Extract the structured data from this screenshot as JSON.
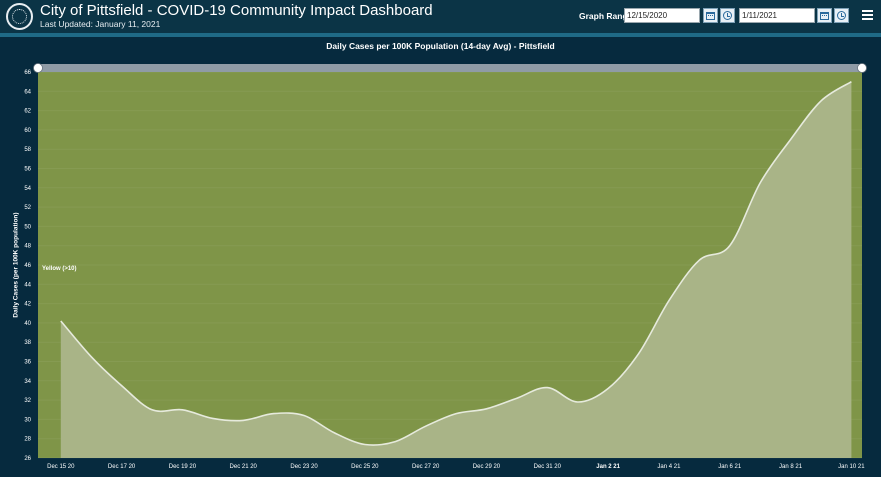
{
  "header": {
    "title": "City of Pittsfield - COVID-19 Community Impact Dashboard",
    "last_updated": "Last Updated: January 11, 2021",
    "graph_range_label": "Graph Range",
    "start_date": "12/15/2020",
    "end_date": "1/11/2021",
    "icons": [
      "city-seal-icon",
      "calendar-icon",
      "clock-icon",
      "calendar-icon",
      "clock-icon",
      "hamburger-menu-icon"
    ]
  },
  "colors": {
    "background": "#062a3e",
    "header": "#0b3446",
    "band_fill": "#7f9548",
    "area_fill": "#a9b487",
    "line": "#e6eadc",
    "slider": "#8f9ba6"
  },
  "chart_data": {
    "type": "area",
    "title": "Daily Cases per 100K Population (14-day Avg) - Pittsfield",
    "ylabel": "Daily Cases (per 100K population)",
    "xlabel": "",
    "ylim": [
      26,
      66
    ],
    "yticks": [
      26,
      28,
      30,
      32,
      34,
      36,
      38,
      40,
      42,
      44,
      46,
      48,
      50,
      52,
      54,
      56,
      58,
      60,
      62,
      64,
      66
    ],
    "xticks": [
      {
        "x": "2020-12-15",
        "label": "Dec 15 20",
        "bold": false
      },
      {
        "x": "2020-12-17",
        "label": "Dec 17 20",
        "bold": false
      },
      {
        "x": "2020-12-19",
        "label": "Dec 19 20",
        "bold": false
      },
      {
        "x": "2020-12-21",
        "label": "Dec 21 20",
        "bold": false
      },
      {
        "x": "2020-12-23",
        "label": "Dec 23 20",
        "bold": false
      },
      {
        "x": "2020-12-25",
        "label": "Dec 25 20",
        "bold": false
      },
      {
        "x": "2020-12-27",
        "label": "Dec 27 20",
        "bold": false
      },
      {
        "x": "2020-12-29",
        "label": "Dec 29 20",
        "bold": false
      },
      {
        "x": "2020-12-31",
        "label": "Dec 31 20",
        "bold": false
      },
      {
        "x": "2021-01-02",
        "label": "Jan 2 21",
        "bold": true
      },
      {
        "x": "2021-01-04",
        "label": "Jan 4 21",
        "bold": false
      },
      {
        "x": "2021-01-06",
        "label": "Jan 6 21",
        "bold": false
      },
      {
        "x": "2021-01-08",
        "label": "Jan 8 21",
        "bold": false
      },
      {
        "x": "2021-01-10",
        "label": "Jan 10 21",
        "bold": false
      }
    ],
    "band": {
      "label": "Yellow (>10)",
      "from": 26,
      "to": 66
    },
    "series": [
      {
        "x": [
          "2020-12-15",
          "2020-12-16",
          "2020-12-17",
          "2020-12-18",
          "2020-12-19",
          "2020-12-20",
          "2020-12-21",
          "2020-12-22",
          "2020-12-23",
          "2020-12-24",
          "2020-12-25",
          "2020-12-26",
          "2020-12-27",
          "2020-12-28",
          "2020-12-29",
          "2020-12-30",
          "2020-12-31",
          "2021-01-01",
          "2021-01-02",
          "2021-01-03",
          "2021-01-04",
          "2021-01-05",
          "2021-01-06",
          "2021-01-07",
          "2021-01-08",
          "2021-01-09",
          "2021-01-10"
        ],
        "values": [
          40.2,
          36.5,
          33.5,
          31.0,
          31.0,
          30.1,
          29.9,
          30.6,
          30.4,
          28.6,
          27.4,
          27.7,
          29.3,
          30.6,
          31.1,
          32.2,
          33.3,
          31.8,
          33.2,
          36.8,
          42.3,
          46.5,
          48.0,
          54.5,
          59.0,
          63.0,
          65.0
        ]
      }
    ]
  }
}
